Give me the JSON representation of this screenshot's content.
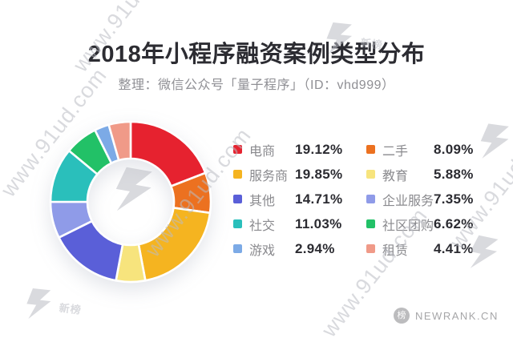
{
  "page": {
    "title": "2018年小程序融资案例类型分布",
    "subtitle": "整理：微信公众号「量子程序」（ID：vhd999）"
  },
  "chart_data": {
    "type": "pie",
    "donut": true,
    "direction": "clockwise",
    "start_angle_deg": 0,
    "unit": "%",
    "title": "2018年小程序融资案例类型分布",
    "legend_position": "right-two-columns",
    "items": [
      {
        "label": "电商",
        "value": 19.12,
        "display": "19.12%",
        "color": "#e6222f"
      },
      {
        "label": "二手",
        "value": 8.09,
        "display": "8.09%",
        "color": "#ec7120"
      },
      {
        "label": "服务商",
        "value": 19.85,
        "display": "19.85%",
        "color": "#f5b420"
      },
      {
        "label": "教育",
        "value": 5.88,
        "display": "5.88%",
        "color": "#f7e47d"
      },
      {
        "label": "其他",
        "value": 14.71,
        "display": "14.71%",
        "color": "#5a5fd8"
      },
      {
        "label": "企业服务",
        "value": 7.35,
        "display": "7.35%",
        "color": "#8f9be8"
      },
      {
        "label": "社交",
        "value": 11.03,
        "display": "11.03%",
        "color": "#2abfbb"
      },
      {
        "label": "社区团购",
        "value": 6.62,
        "display": "6.62%",
        "color": "#22c167"
      },
      {
        "label": "游戏",
        "value": 2.94,
        "display": "2.94%",
        "color": "#7caae6"
      },
      {
        "label": "租赁",
        "value": 4.41,
        "display": "4.41%",
        "color": "#f09a88"
      }
    ]
  },
  "footer": {
    "logo_text": "NEWRANK.CN",
    "logo_glyph": "榜"
  },
  "watermark": {
    "text": "www.91ud.com",
    "brand": "新榜"
  }
}
